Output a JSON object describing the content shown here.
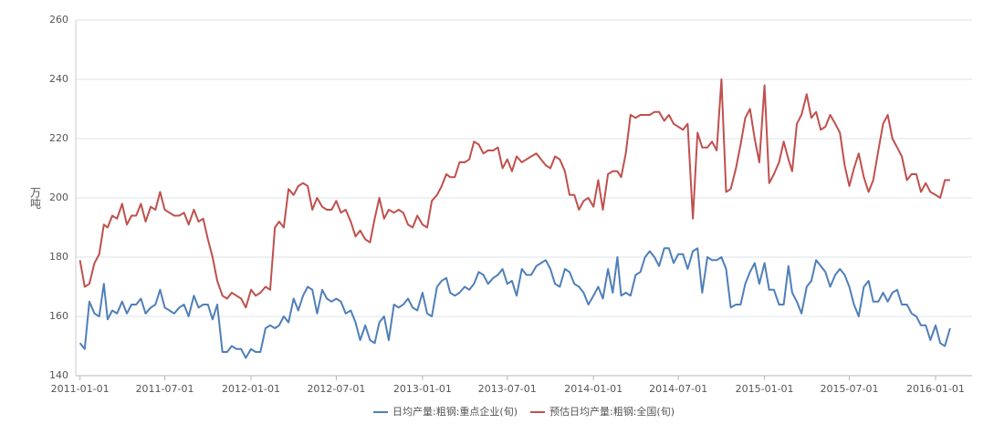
{
  "chart_data": {
    "type": "line",
    "y_label": "万吨",
    "x": [
      "2011-01-01",
      "2011-01-11",
      "2011-01-21",
      "2011-02-01",
      "2011-02-11",
      "2011-02-21",
      "2011-03-01",
      "2011-03-11",
      "2011-03-21",
      "2011-04-01",
      "2011-04-11",
      "2011-04-21",
      "2011-05-01",
      "2011-05-11",
      "2011-05-21",
      "2011-06-01",
      "2011-06-11",
      "2011-06-21",
      "2011-07-01",
      "2011-07-11",
      "2011-07-21",
      "2011-08-01",
      "2011-08-11",
      "2011-08-21",
      "2011-09-01",
      "2011-09-11",
      "2011-09-21",
      "2011-10-01",
      "2011-10-11",
      "2011-10-21",
      "2011-11-01",
      "2011-11-11",
      "2011-11-21",
      "2011-12-01",
      "2011-12-11",
      "2011-12-21",
      "2012-01-01",
      "2012-01-11",
      "2012-01-21",
      "2012-02-01",
      "2012-02-11",
      "2012-02-21",
      "2012-03-01",
      "2012-03-11",
      "2012-03-21",
      "2012-04-01",
      "2012-04-11",
      "2012-04-21",
      "2012-05-01",
      "2012-05-11",
      "2012-05-21",
      "2012-06-01",
      "2012-06-11",
      "2012-06-21",
      "2012-07-01",
      "2012-07-11",
      "2012-07-21",
      "2012-08-01",
      "2012-08-11",
      "2012-08-21",
      "2012-09-01",
      "2012-09-11",
      "2012-09-21",
      "2012-10-01",
      "2012-10-11",
      "2012-10-21",
      "2012-11-01",
      "2012-11-11",
      "2012-11-21",
      "2012-12-01",
      "2012-12-11",
      "2012-12-21",
      "2013-01-01",
      "2013-01-11",
      "2013-01-21",
      "2013-02-01",
      "2013-02-11",
      "2013-02-21",
      "2013-03-01",
      "2013-03-11",
      "2013-03-21",
      "2013-04-01",
      "2013-04-11",
      "2013-04-21",
      "2013-05-01",
      "2013-05-11",
      "2013-05-21",
      "2013-06-01",
      "2013-06-11",
      "2013-06-21",
      "2013-07-01",
      "2013-07-11",
      "2013-07-21",
      "2013-08-01",
      "2013-08-11",
      "2013-08-21",
      "2013-09-01",
      "2013-09-11",
      "2013-09-21",
      "2013-10-01",
      "2013-10-11",
      "2013-10-21",
      "2013-11-01",
      "2013-11-11",
      "2013-11-21",
      "2013-12-01",
      "2013-12-11",
      "2013-12-21",
      "2014-01-01",
      "2014-01-11",
      "2014-01-21",
      "2014-02-01",
      "2014-02-11",
      "2014-02-21",
      "2014-03-01",
      "2014-03-11",
      "2014-03-21",
      "2014-04-01",
      "2014-04-11",
      "2014-04-21",
      "2014-05-01",
      "2014-05-11",
      "2014-05-21",
      "2014-06-01",
      "2014-06-11",
      "2014-06-21",
      "2014-07-01",
      "2014-07-11",
      "2014-07-21",
      "2014-08-01",
      "2014-08-11",
      "2014-08-21",
      "2014-09-01",
      "2014-09-11",
      "2014-09-21",
      "2014-10-01",
      "2014-10-11",
      "2014-10-21",
      "2014-11-01",
      "2014-11-11",
      "2014-11-21",
      "2014-12-01",
      "2014-12-11",
      "2014-12-21",
      "2015-01-01",
      "2015-01-11",
      "2015-01-21",
      "2015-02-01",
      "2015-02-11",
      "2015-02-21",
      "2015-03-01",
      "2015-03-11",
      "2015-03-21",
      "2015-04-01",
      "2015-04-11",
      "2015-04-21",
      "2015-05-01",
      "2015-05-11",
      "2015-05-21",
      "2015-06-01",
      "2015-06-11",
      "2015-06-21",
      "2015-07-01",
      "2015-07-11",
      "2015-07-21",
      "2015-08-01",
      "2015-08-11",
      "2015-08-21",
      "2015-09-01",
      "2015-09-11",
      "2015-09-21",
      "2015-10-01",
      "2015-10-11",
      "2015-10-21",
      "2015-11-01",
      "2015-11-11",
      "2015-11-21",
      "2015-12-01",
      "2015-12-11",
      "2015-12-21",
      "2016-01-01",
      "2016-01-11",
      "2016-01-21",
      "2016-02-01"
    ],
    "series": [
      {
        "name": "日均产量:粗钢:重点企业(旬)",
        "color": "#4f7fb8",
        "values": [
          151,
          149,
          165,
          161,
          160,
          171,
          159,
          162,
          161,
          165,
          161,
          164,
          164,
          166,
          161,
          163,
          164,
          169,
          163,
          162,
          161,
          163,
          164,
          160,
          167,
          163,
          164,
          164,
          159,
          164,
          148,
          148,
          150,
          149,
          149,
          146,
          149,
          148,
          148,
          156,
          157,
          156,
          157,
          160,
          158,
          166,
          162,
          167,
          170,
          169,
          161,
          169,
          166,
          165,
          166,
          165,
          161,
          162,
          158,
          152,
          157,
          152,
          151,
          158,
          160,
          152,
          164,
          163,
          164,
          166,
          163,
          162,
          168,
          161,
          160,
          170,
          172,
          173,
          168,
          167,
          168,
          170,
          169,
          171,
          175,
          174,
          171,
          173,
          174,
          176,
          171,
          172,
          167,
          176,
          174,
          174,
          177,
          178,
          179,
          176,
          171,
          170,
          176,
          175,
          171,
          170,
          168,
          164,
          167,
          170,
          166,
          176,
          168,
          180,
          167,
          168,
          167,
          174,
          175,
          180,
          182,
          180,
          177,
          183,
          183,
          178,
          181,
          181,
          176,
          182,
          183,
          168,
          180,
          179,
          179,
          180,
          176,
          163,
          164,
          164,
          171,
          175,
          178,
          171,
          178,
          169,
          169,
          164,
          164,
          177,
          168,
          165,
          161,
          170,
          172,
          179,
          177,
          175,
          170,
          174,
          176,
          174,
          170,
          164,
          160,
          170,
          172,
          165,
          165,
          168,
          165,
          168,
          169,
          164,
          164,
          161,
          160,
          157,
          157,
          152,
          157,
          151,
          150,
          156
        ]
      },
      {
        "name": "预估日均产量:粗钢:全国(旬)",
        "color": "#c0504d",
        "values": [
          179,
          170,
          171,
          178,
          181,
          191,
          190,
          194,
          193,
          198,
          191,
          194,
          194,
          198,
          192,
          197,
          196,
          202,
          196,
          195,
          194,
          194,
          195,
          191,
          196,
          192,
          193,
          186,
          180,
          172,
          167,
          166,
          168,
          167,
          166,
          163,
          169,
          167,
          168,
          170,
          169,
          190,
          192,
          190,
          203,
          201,
          204,
          205,
          204,
          196,
          200,
          197,
          196,
          196,
          199,
          195,
          196,
          192,
          187,
          189,
          186,
          185,
          193,
          200,
          193,
          196,
          195,
          196,
          195,
          191,
          190,
          194,
          191,
          190,
          199,
          201,
          204,
          208,
          207,
          207,
          212,
          212,
          213,
          219,
          218,
          215,
          216,
          216,
          217,
          210,
          213,
          209,
          214,
          212,
          213,
          214,
          215,
          213,
          211,
          210,
          214,
          213,
          209,
          201,
          201,
          196,
          199,
          200,
          197,
          206,
          196,
          208,
          209,
          209,
          207,
          215,
          228,
          227,
          228,
          228,
          228,
          229,
          229,
          226,
          228,
          225,
          224,
          223,
          225,
          193,
          222,
          217,
          217,
          219,
          216,
          240,
          202,
          203,
          210,
          218,
          227,
          230,
          220,
          212,
          238,
          205,
          208,
          212,
          219,
          213,
          209,
          225,
          228,
          235,
          227,
          229,
          223,
          224,
          228,
          225,
          222,
          211,
          204,
          210,
          215,
          207,
          202,
          206,
          216,
          225,
          228,
          220,
          217,
          214,
          206,
          208,
          208,
          202,
          205,
          202,
          201,
          200,
          206,
          206
        ]
      }
    ],
    "xlim": [
      "2010-12-23",
      "2016-03-19"
    ],
    "xticks": [
      "2011-01-01",
      "2011-07-01",
      "2012-01-01",
      "2012-07-01",
      "2013-01-01",
      "2013-07-01",
      "2014-01-01",
      "2014-07-01",
      "2015-01-01",
      "2015-07-01",
      "2016-01-01"
    ],
    "ylim": [
      140,
      260
    ],
    "yticks": [
      140,
      160,
      180,
      200,
      220,
      240,
      260
    ],
    "grid": true,
    "legend": "bottom"
  }
}
